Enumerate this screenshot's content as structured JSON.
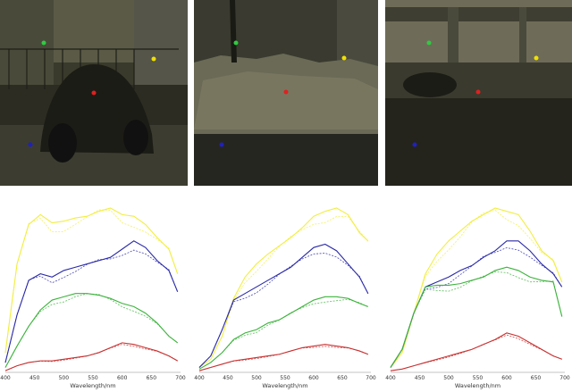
{
  "photos": [
    {
      "label": "scene-car"
    },
    {
      "label": "scene-rubble"
    },
    {
      "label": "scene-bridge"
    }
  ],
  "marker_colors": {
    "green": "#2ecc40",
    "yellow": "#f0e000",
    "red": "#e02020",
    "blue": "#2020c0"
  },
  "chart_data": [
    {
      "type": "line",
      "xlabel": "Wavelength/nm",
      "xticks": [
        "400",
        "450",
        "500",
        "550",
        "600",
        "650",
        "700"
      ],
      "xlim": [
        400,
        700
      ],
      "series": [
        {
          "color": "#f2ee40",
          "x": [
            400,
            420,
            440,
            460,
            480,
            500,
            520,
            540,
            560,
            580,
            600,
            620,
            640,
            660,
            680,
            695
          ],
          "values": [
            0.12,
            0.66,
            0.9,
            0.96,
            0.91,
            0.92,
            0.94,
            0.95,
            0.98,
            1.0,
            0.96,
            0.95,
            0.9,
            0.82,
            0.75,
            0.6
          ]
        },
        {
          "color": "#2a2aa8",
          "x": [
            400,
            420,
            440,
            460,
            480,
            500,
            520,
            540,
            560,
            580,
            600,
            620,
            640,
            660,
            680,
            695
          ],
          "values": [
            0.06,
            0.35,
            0.56,
            0.6,
            0.58,
            0.62,
            0.64,
            0.66,
            0.68,
            0.7,
            0.75,
            0.8,
            0.76,
            0.68,
            0.62,
            0.49
          ]
        },
        {
          "color": "#3cb33c",
          "x": [
            400,
            420,
            440,
            460,
            480,
            500,
            520,
            540,
            560,
            580,
            600,
            620,
            640,
            660,
            680,
            695
          ],
          "values": [
            0.03,
            0.16,
            0.28,
            0.38,
            0.44,
            0.46,
            0.48,
            0.48,
            0.47,
            0.45,
            0.42,
            0.4,
            0.36,
            0.3,
            0.22,
            0.18
          ]
        },
        {
          "color": "#c83030",
          "x": [
            400,
            420,
            440,
            460,
            480,
            500,
            520,
            540,
            560,
            580,
            600,
            620,
            640,
            660,
            680,
            695
          ],
          "values": [
            0.01,
            0.04,
            0.06,
            0.07,
            0.07,
            0.08,
            0.09,
            0.1,
            0.12,
            0.15,
            0.18,
            0.17,
            0.15,
            0.13,
            0.1,
            0.07
          ]
        }
      ]
    },
    {
      "type": "line",
      "xlabel": "Wavelength/nm",
      "xticks": [
        "400",
        "450",
        "500",
        "550",
        "600",
        "650",
        "700"
      ],
      "xlim": [
        400,
        700
      ],
      "series": [
        {
          "color": "#f2ee40",
          "x": [
            400,
            420,
            440,
            460,
            480,
            500,
            520,
            540,
            560,
            580,
            600,
            620,
            640,
            660,
            680,
            695
          ],
          "values": [
            0.03,
            0.08,
            0.22,
            0.45,
            0.58,
            0.66,
            0.72,
            0.77,
            0.82,
            0.88,
            0.95,
            0.98,
            1.0,
            0.96,
            0.85,
            0.8
          ]
        },
        {
          "color": "#2a2aa8",
          "x": [
            400,
            420,
            440,
            460,
            480,
            500,
            520,
            540,
            560,
            580,
            600,
            620,
            640,
            660,
            680,
            695
          ],
          "values": [
            0.03,
            0.1,
            0.26,
            0.44,
            0.48,
            0.52,
            0.56,
            0.6,
            0.64,
            0.7,
            0.76,
            0.78,
            0.74,
            0.66,
            0.58,
            0.48
          ]
        },
        {
          "color": "#3cb33c",
          "x": [
            400,
            420,
            440,
            460,
            480,
            500,
            520,
            540,
            560,
            580,
            600,
            620,
            640,
            660,
            680,
            695
          ],
          "values": [
            0.02,
            0.06,
            0.12,
            0.2,
            0.24,
            0.26,
            0.3,
            0.32,
            0.36,
            0.4,
            0.44,
            0.46,
            0.46,
            0.45,
            0.42,
            0.4
          ]
        },
        {
          "color": "#c83030",
          "x": [
            400,
            420,
            440,
            460,
            480,
            500,
            520,
            540,
            560,
            580,
            600,
            620,
            640,
            660,
            680,
            695
          ],
          "values": [
            0.01,
            0.03,
            0.05,
            0.07,
            0.08,
            0.09,
            0.1,
            0.11,
            0.13,
            0.15,
            0.16,
            0.17,
            0.16,
            0.15,
            0.13,
            0.11
          ]
        }
      ]
    },
    {
      "type": "line",
      "xlabel": "Wavelength/nm",
      "xticks": [
        "400",
        "450",
        "500",
        "550",
        "600",
        "650",
        "700"
      ],
      "xlim": [
        400,
        700
      ],
      "series": [
        {
          "color": "#f2ee40",
          "x": [
            400,
            420,
            440,
            460,
            480,
            500,
            520,
            540,
            560,
            580,
            600,
            620,
            640,
            660,
            680,
            695
          ],
          "values": [
            0.03,
            0.12,
            0.36,
            0.6,
            0.72,
            0.8,
            0.86,
            0.92,
            0.96,
            1.0,
            0.98,
            0.96,
            0.86,
            0.74,
            0.68,
            0.55
          ]
        },
        {
          "color": "#2a2aa8",
          "x": [
            400,
            420,
            440,
            460,
            480,
            500,
            520,
            540,
            560,
            580,
            600,
            620,
            640,
            660,
            680,
            695
          ],
          "values": [
            0.03,
            0.14,
            0.36,
            0.52,
            0.55,
            0.58,
            0.62,
            0.65,
            0.7,
            0.74,
            0.8,
            0.8,
            0.74,
            0.66,
            0.6,
            0.52
          ]
        },
        {
          "color": "#3cb33c",
          "x": [
            400,
            420,
            440,
            460,
            480,
            500,
            520,
            540,
            560,
            580,
            600,
            620,
            640,
            660,
            680,
            695
          ],
          "values": [
            0.03,
            0.14,
            0.36,
            0.52,
            0.53,
            0.53,
            0.54,
            0.56,
            0.58,
            0.62,
            0.64,
            0.62,
            0.58,
            0.56,
            0.55,
            0.34
          ]
        },
        {
          "color": "#c83030",
          "x": [
            400,
            420,
            440,
            460,
            480,
            500,
            520,
            540,
            560,
            580,
            600,
            620,
            640,
            660,
            680,
            695
          ],
          "values": [
            0.01,
            0.02,
            0.04,
            0.06,
            0.08,
            0.1,
            0.12,
            0.14,
            0.17,
            0.2,
            0.24,
            0.22,
            0.18,
            0.14,
            0.1,
            0.08
          ]
        }
      ]
    }
  ]
}
